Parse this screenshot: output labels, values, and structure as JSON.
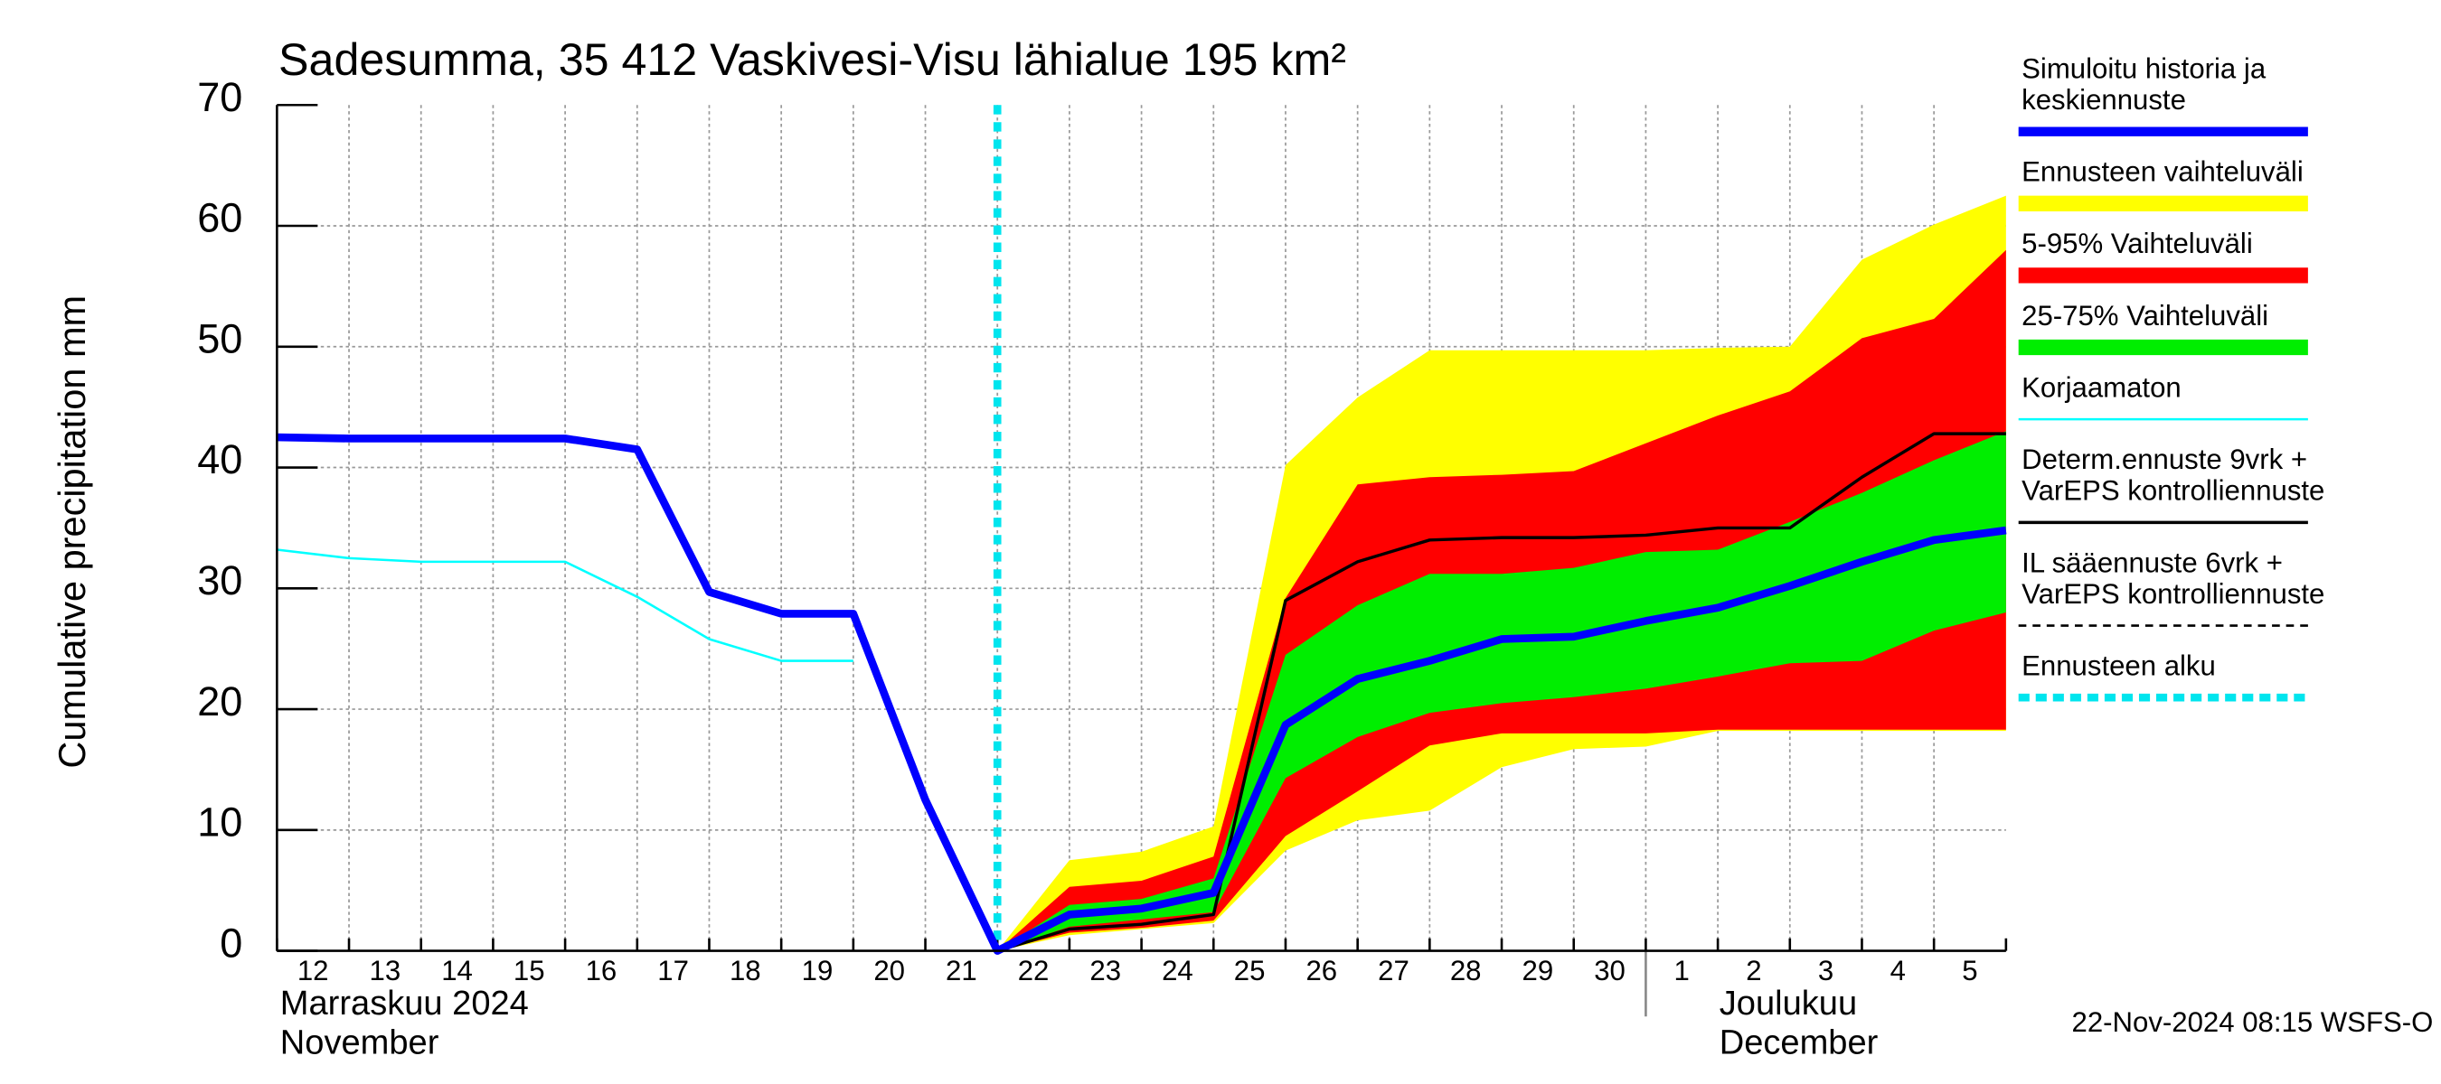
{
  "chart_data": {
    "type": "line",
    "title": "Sadesumma, 35 412 Vaskivesi-Visu lähialue 195 km²",
    "ylabel": "Cumulative precipitation   mm",
    "ylim": [
      0,
      70
    ],
    "yticks": [
      0,
      10,
      20,
      30,
      40,
      50,
      60,
      70
    ],
    "grid": true,
    "categories": [
      "12",
      "13",
      "14",
      "15",
      "16",
      "17",
      "18",
      "19",
      "20",
      "21",
      "22",
      "23",
      "24",
      "25",
      "26",
      "27",
      "28",
      "29",
      "30",
      "1",
      "2",
      "3",
      "4",
      "5",
      null
    ],
    "month_labels": [
      {
        "lines": [
          "Marraskuu 2024",
          "November"
        ],
        "at": "12"
      },
      {
        "lines": [
          "Joulukuu",
          "December"
        ],
        "at": "1"
      }
    ],
    "timestamp": "22-Nov-2024 08:15 WSFS-O",
    "series": [
      {
        "name": [
          "Simuloitu historia ja",
          "keskiennuste"
        ],
        "kind": "line",
        "color": "#0000ff",
        "width": 5,
        "values": [
          42.5,
          42.4,
          42.4,
          42.4,
          42.4,
          41.5,
          29.7,
          27.9,
          27.9,
          12.5,
          0,
          3,
          3.5,
          4.8,
          18.7,
          22.5,
          24,
          25.8,
          26,
          27.3,
          28.4,
          30.2,
          32.2,
          34,
          34.8
        ]
      },
      {
        "name": [
          "Ennusteen vaihteluväli"
        ],
        "kind": "band",
        "color": "#ffff00",
        "high": [
          null,
          null,
          null,
          null,
          null,
          null,
          null,
          null,
          null,
          null,
          0,
          7.5,
          8.2,
          10.3,
          40.2,
          45.8,
          49.7,
          49.7,
          49.7,
          49.7,
          49.9,
          50,
          57.2,
          60.1,
          62.5
        ],
        "low": [
          null,
          null,
          null,
          null,
          null,
          null,
          null,
          null,
          null,
          null,
          0,
          1.3,
          1.8,
          2.3,
          8.3,
          10.8,
          11.6,
          15.2,
          16.7,
          16.9,
          18.2,
          18.2,
          18.2,
          18.2,
          18.2
        ]
      },
      {
        "name": [
          "5-95% Vaihteluväli"
        ],
        "kind": "band",
        "color": "#ff0000",
        "high": [
          null,
          null,
          null,
          null,
          null,
          null,
          null,
          null,
          null,
          null,
          0,
          5.3,
          5.8,
          7.8,
          29.2,
          38.6,
          39.2,
          39.4,
          39.7,
          42,
          44.3,
          46.3,
          50.7,
          52.3,
          58
        ],
        "low": [
          null,
          null,
          null,
          null,
          null,
          null,
          null,
          null,
          null,
          null,
          0,
          1.5,
          1.9,
          2.5,
          9.5,
          13.2,
          17,
          18,
          18,
          18,
          18.3,
          18.3,
          18.3,
          18.3,
          18.3
        ]
      },
      {
        "name": [
          "25-75% Vaihteluväli"
        ],
        "kind": "band",
        "color": "#00ee00",
        "high": [
          null,
          null,
          null,
          null,
          null,
          null,
          null,
          null,
          null,
          null,
          0,
          3.8,
          4.3,
          6,
          24.5,
          28.6,
          31.2,
          31.2,
          31.7,
          33,
          33.2,
          35.5,
          37.9,
          40.6,
          43
        ],
        "low": [
          null,
          null,
          null,
          null,
          null,
          null,
          null,
          null,
          null,
          null,
          0,
          2,
          2.6,
          3.2,
          14.3,
          17.7,
          19.7,
          20.5,
          21,
          21.7,
          22.7,
          23.8,
          24,
          26.5,
          28
        ]
      },
      {
        "name": [
          "Korjaamaton"
        ],
        "kind": "line",
        "color": "#00ffff",
        "width": 1.5,
        "values": [
          33.2,
          32.5,
          32.2,
          32.2,
          32.2,
          29.3,
          25.8,
          24,
          24,
          null,
          null,
          null,
          null,
          null,
          null,
          null,
          null,
          null,
          null,
          null,
          null,
          null,
          null,
          null,
          null
        ]
      },
      {
        "name": [
          "Determ.ennuste 9vrk  +",
          "VarEPS kontrolliennuste"
        ],
        "kind": "line",
        "color": "#000000",
        "width": 2,
        "values": [
          null,
          null,
          null,
          null,
          null,
          null,
          null,
          null,
          null,
          null,
          0,
          1.8,
          2.2,
          3,
          29,
          32.2,
          34,
          34.2,
          34.2,
          34.4,
          35,
          35,
          39.2,
          42.8,
          42.8
        ]
      },
      {
        "name": [
          "IL sääennuste 6vrk  +",
          "  VarEPS kontrolliennuste"
        ],
        "kind": "dashed",
        "color": "#000000",
        "width": 1.5
      },
      {
        "name": [
          "Ennusteen alku"
        ],
        "kind": "vline",
        "color": "#00e5ee",
        "width": 5,
        "at": "22"
      }
    ]
  }
}
